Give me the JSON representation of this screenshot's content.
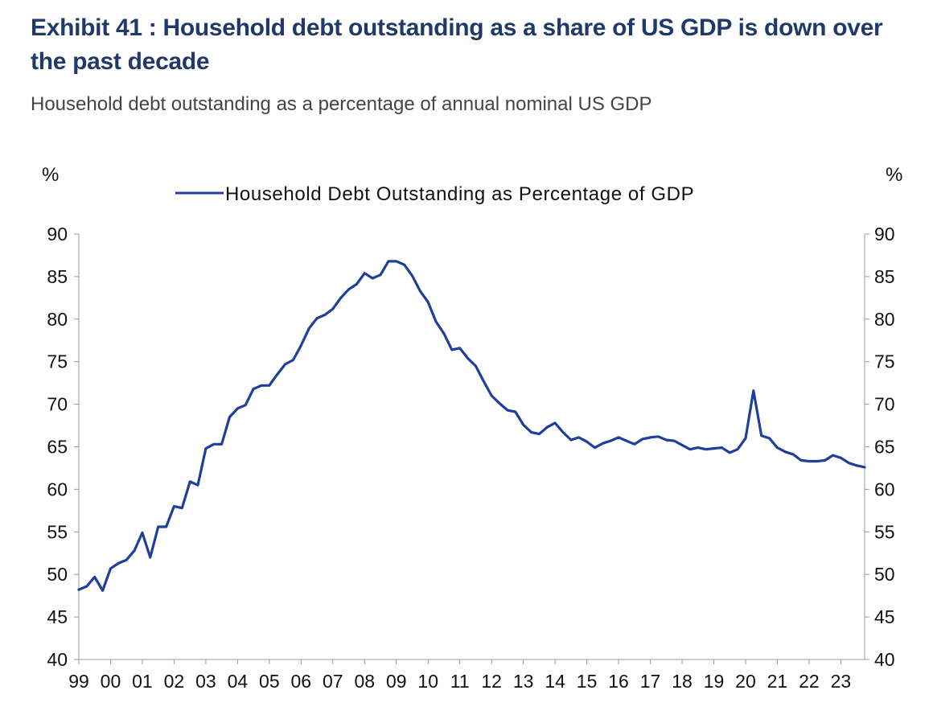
{
  "title": "Exhibit 41 : Household debt outstanding as a share of US GDP is down over the past decade",
  "subtitle": "Household debt outstanding as a percentage of annual nominal US GDP",
  "chart_data": {
    "type": "line",
    "left_unit": "%",
    "right_unit": "%",
    "legend_position": "top-center",
    "ylim": [
      40,
      90
    ],
    "yticks": [
      40,
      45,
      50,
      55,
      60,
      65,
      70,
      75,
      80,
      85,
      90
    ],
    "xlim": [
      1999.0,
      2023.75
    ],
    "xtick_labels": [
      "99",
      "00",
      "01",
      "02",
      "03",
      "04",
      "05",
      "06",
      "07",
      "08",
      "09",
      "10",
      "11",
      "12",
      "13",
      "14",
      "15",
      "16",
      "17",
      "18",
      "19",
      "20",
      "21",
      "22",
      "23"
    ],
    "grid": false,
    "colors": {
      "line": "#1f3f9a",
      "axis": "#999999"
    },
    "series": [
      {
        "name": "Household Debt Outstanding as Percentage of GDP",
        "x": [
          1999.0,
          1999.25,
          1999.5,
          1999.75,
          2000.0,
          2000.25,
          2000.5,
          2000.75,
          2001.0,
          2001.25,
          2001.5,
          2001.75,
          2002.0,
          2002.25,
          2002.5,
          2002.75,
          2003.0,
          2003.25,
          2003.5,
          2003.75,
          2004.0,
          2004.25,
          2004.5,
          2004.75,
          2005.0,
          2005.25,
          2005.5,
          2005.75,
          2006.0,
          2006.25,
          2006.5,
          2006.75,
          2007.0,
          2007.25,
          2007.5,
          2007.75,
          2008.0,
          2008.25,
          2008.5,
          2008.75,
          2009.0,
          2009.25,
          2009.5,
          2009.75,
          2010.0,
          2010.25,
          2010.5,
          2010.75,
          2011.0,
          2011.25,
          2011.5,
          2011.75,
          2012.0,
          2012.25,
          2012.5,
          2012.75,
          2013.0,
          2013.25,
          2013.5,
          2013.75,
          2014.0,
          2014.25,
          2014.5,
          2014.75,
          2015.0,
          2015.25,
          2015.5,
          2015.75,
          2016.0,
          2016.25,
          2016.5,
          2016.75,
          2017.0,
          2017.25,
          2017.5,
          2017.75,
          2018.0,
          2018.25,
          2018.5,
          2018.75,
          2019.0,
          2019.25,
          2019.5,
          2019.75,
          2020.0,
          2020.25,
          2020.5,
          2020.75,
          2021.0,
          2021.25,
          2021.5,
          2021.75,
          2022.0,
          2022.25,
          2022.5,
          2022.75,
          2023.0,
          2023.25,
          2023.5,
          2023.75
        ],
        "values": [
          48.2,
          48.6,
          49.7,
          48.1,
          50.7,
          51.3,
          51.7,
          52.8,
          54.9,
          52.0,
          55.6,
          55.6,
          58.0,
          57.8,
          60.9,
          60.5,
          64.8,
          65.3,
          65.3,
          68.5,
          69.5,
          69.9,
          71.8,
          72.2,
          72.2,
          73.5,
          74.7,
          75.2,
          76.9,
          78.9,
          80.1,
          80.5,
          81.2,
          82.5,
          83.5,
          84.1,
          85.4,
          84.8,
          85.2,
          86.8,
          86.8,
          86.4,
          85.1,
          83.3,
          82.0,
          79.7,
          78.3,
          76.4,
          76.6,
          75.4,
          74.5,
          72.7,
          71.0,
          70.1,
          69.3,
          69.1,
          67.6,
          66.7,
          66.5,
          67.3,
          67.8,
          66.7,
          65.8,
          66.1,
          65.6,
          64.9,
          65.4,
          65.7,
          66.1,
          65.7,
          65.3,
          65.9,
          66.1,
          66.2,
          65.8,
          65.7,
          65.2,
          64.7,
          64.9,
          64.7,
          64.8,
          64.9,
          64.3,
          64.7,
          66.0,
          71.6,
          66.3,
          66.0,
          64.9,
          64.4,
          64.1,
          63.4,
          63.3,
          63.3,
          63.4,
          64.0,
          63.7,
          63.1,
          62.8,
          62.6
        ]
      }
    ]
  }
}
